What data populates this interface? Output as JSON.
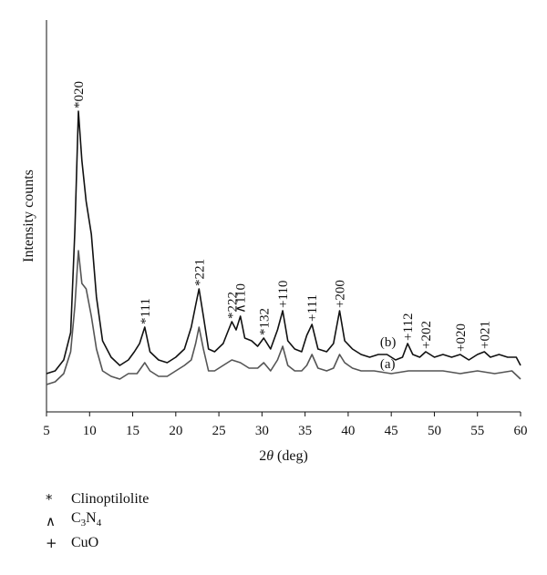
{
  "chart_data": {
    "type": "line",
    "xlabel_pre": "2",
    "xlabel_theta": "θ",
    "xlabel_post": " (deg)",
    "ylabel": "Intensity counts",
    "xlim": [
      5,
      60
    ],
    "x_ticks": [
      5,
      10,
      15,
      20,
      25,
      30,
      35,
      40,
      45,
      50,
      55,
      60
    ],
    "grid": false,
    "series": [
      {
        "name": "(b)",
        "color": "#111111",
        "points": [
          [
            5,
            -3
          ],
          [
            6,
            -2
          ],
          [
            7,
            2
          ],
          [
            7.8,
            12
          ],
          [
            8.3,
            50
          ],
          [
            8.7,
            93
          ],
          [
            9.1,
            75
          ],
          [
            9.6,
            60
          ],
          [
            10.2,
            48
          ],
          [
            10.8,
            25
          ],
          [
            11.5,
            9
          ],
          [
            12.5,
            3
          ],
          [
            13.5,
            0
          ],
          [
            14.5,
            2
          ],
          [
            15.2,
            5
          ],
          [
            15.8,
            8
          ],
          [
            16.4,
            14
          ],
          [
            17,
            5
          ],
          [
            18,
            2
          ],
          [
            19,
            1
          ],
          [
            20,
            3
          ],
          [
            21,
            6
          ],
          [
            21.8,
            14
          ],
          [
            22.3,
            22
          ],
          [
            22.7,
            28
          ],
          [
            23.2,
            18
          ],
          [
            23.8,
            6
          ],
          [
            24.5,
            5
          ],
          [
            25.5,
            8
          ],
          [
            26,
            12
          ],
          [
            26.5,
            16
          ],
          [
            27,
            13
          ],
          [
            27.5,
            18
          ],
          [
            28,
            10
          ],
          [
            28.8,
            9
          ],
          [
            29.5,
            7
          ],
          [
            30.2,
            10
          ],
          [
            31,
            6
          ],
          [
            31.8,
            13
          ],
          [
            32.4,
            20
          ],
          [
            33,
            9
          ],
          [
            33.8,
            6
          ],
          [
            34.6,
            5
          ],
          [
            35.2,
            11
          ],
          [
            35.8,
            15
          ],
          [
            36.5,
            6
          ],
          [
            37.5,
            5
          ],
          [
            38.3,
            8
          ],
          [
            39,
            20
          ],
          [
            39.6,
            9
          ],
          [
            40.5,
            6
          ],
          [
            41.5,
            4
          ],
          [
            42.5,
            3
          ],
          [
            43.5,
            4
          ],
          [
            44.5,
            4
          ],
          [
            45.5,
            2
          ],
          [
            46.3,
            3
          ],
          [
            46.9,
            8
          ],
          [
            47.5,
            4
          ],
          [
            48.3,
            3
          ],
          [
            49,
            5
          ],
          [
            50,
            3
          ],
          [
            51,
            4
          ],
          [
            52,
            3
          ],
          [
            53,
            4
          ],
          [
            54,
            2
          ],
          [
            55,
            4
          ],
          [
            55.8,
            5
          ],
          [
            56.5,
            3
          ],
          [
            57.5,
            4
          ],
          [
            58.5,
            3
          ],
          [
            59.5,
            3
          ],
          [
            60,
            0
          ]
        ]
      },
      {
        "name": "(a)",
        "color": "#555555",
        "points": [
          [
            5,
            -7
          ],
          [
            6,
            -6
          ],
          [
            7,
            -3
          ],
          [
            7.8,
            5
          ],
          [
            8.3,
            22
          ],
          [
            8.7,
            42
          ],
          [
            9.1,
            30
          ],
          [
            9.6,
            28
          ],
          [
            10.2,
            18
          ],
          [
            10.8,
            6
          ],
          [
            11.5,
            -2
          ],
          [
            12.5,
            -4
          ],
          [
            13.5,
            -5
          ],
          [
            14.5,
            -3
          ],
          [
            15.5,
            -3
          ],
          [
            16.4,
            1
          ],
          [
            17,
            -2
          ],
          [
            18,
            -4
          ],
          [
            19,
            -4
          ],
          [
            20,
            -2
          ],
          [
            21,
            0
          ],
          [
            21.8,
            2
          ],
          [
            22.3,
            8
          ],
          [
            22.7,
            14
          ],
          [
            23.2,
            6
          ],
          [
            23.8,
            -2
          ],
          [
            24.5,
            -2
          ],
          [
            25.5,
            0
          ],
          [
            26.5,
            2
          ],
          [
            27.5,
            1
          ],
          [
            28.5,
            -1
          ],
          [
            29.5,
            -1
          ],
          [
            30.2,
            1
          ],
          [
            31,
            -2
          ],
          [
            31.8,
            2
          ],
          [
            32.4,
            7
          ],
          [
            33,
            0
          ],
          [
            33.8,
            -2
          ],
          [
            34.6,
            -2
          ],
          [
            35.2,
            0
          ],
          [
            35.8,
            4
          ],
          [
            36.5,
            -1
          ],
          [
            37.5,
            -2
          ],
          [
            38.3,
            -1
          ],
          [
            39,
            4
          ],
          [
            39.6,
            1
          ],
          [
            40.5,
            -1
          ],
          [
            41.5,
            -2
          ],
          [
            43,
            -2
          ],
          [
            45,
            -3
          ],
          [
            47,
            -2
          ],
          [
            49,
            -2
          ],
          [
            51,
            -2
          ],
          [
            53,
            -3
          ],
          [
            55,
            -2
          ],
          [
            57,
            -3
          ],
          [
            59,
            -2
          ],
          [
            60,
            -5
          ]
        ]
      }
    ],
    "peak_labels": [
      {
        "x": 8.7,
        "y": 93,
        "sym": "*",
        "hkl": "020"
      },
      {
        "x": 16.4,
        "y": 14,
        "sym": "*",
        "hkl": "111"
      },
      {
        "x": 22.7,
        "y": 28,
        "sym": "*",
        "hkl": "221"
      },
      {
        "x": 26.5,
        "y": 16,
        "sym": "*",
        "hkl": "222"
      },
      {
        "x": 27.5,
        "y": 18,
        "sym": "∧",
        "hkl": "110"
      },
      {
        "x": 30.2,
        "y": 10,
        "sym": "*",
        "hkl": "132"
      },
      {
        "x": 32.4,
        "y": 20,
        "sym": "+",
        "hkl": "110"
      },
      {
        "x": 35.8,
        "y": 15,
        "sym": "+",
        "hkl": "111"
      },
      {
        "x": 39,
        "y": 20,
        "sym": "+",
        "hkl": "200"
      },
      {
        "x": 46.9,
        "y": 8,
        "sym": "+",
        "hkl": "112"
      },
      {
        "x": 49,
        "y": 5,
        "sym": "+",
        "hkl": "202"
      },
      {
        "x": 53,
        "y": 4,
        "sym": "+",
        "hkl": "020"
      },
      {
        "x": 55.8,
        "y": 5,
        "sym": "+",
        "hkl": "021"
      }
    ],
    "series_labels": [
      {
        "text": "(b)",
        "x": 43.7,
        "y": 7
      },
      {
        "text": "(a)",
        "x": 43.7,
        "y": -1
      }
    ],
    "legend": {
      "placement": "bottom-left",
      "items": [
        {
          "symbol": "*",
          "label": "Clinoptilolite"
        },
        {
          "symbol": "∧",
          "label_main": "C",
          "sub1": "3",
          "mid": "N",
          "sub2": "4"
        },
        {
          "symbol": "+",
          "label": "CuO"
        }
      ]
    }
  }
}
